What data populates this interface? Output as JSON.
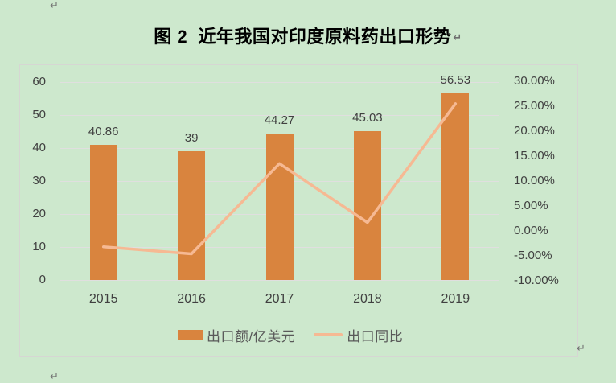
{
  "page": {
    "background": "#cde8cd",
    "paragraph_mark": "↵"
  },
  "title": {
    "text": "图 2  近年我国对印度原料药出口形势"
  },
  "chart_data": {
    "type": "bar",
    "subtype": "combo-bar-line",
    "title": "图 2  近年我国对印度原料药出口形势",
    "categories": [
      "2015",
      "2016",
      "2017",
      "2018",
      "2019"
    ],
    "series": [
      {
        "name": "出口额/亿美元",
        "kind": "bar",
        "axis": "left",
        "color": "#d9843e",
        "values": [
          40.86,
          39,
          44.27,
          45.03,
          56.53
        ],
        "data_labels": [
          "40.86",
          "39",
          "44.27",
          "45.03",
          "56.53"
        ]
      },
      {
        "name": "出口同比",
        "kind": "line",
        "axis": "right",
        "color": "#f6b993",
        "values": [
          -3.2,
          -4.6,
          13.5,
          1.7,
          25.5
        ]
      }
    ],
    "left_axis": {
      "min": 0,
      "max": 60,
      "tick_values": [
        60,
        50,
        40,
        30,
        20,
        10,
        0
      ],
      "tick_labels": [
        "60",
        "50",
        "40",
        "30",
        "20",
        "10",
        "0"
      ]
    },
    "right_axis": {
      "min": -10,
      "max": 30,
      "tick_labels": [
        "30.00%",
        "25.00%",
        "20.00%",
        "15.00%",
        "10.00%",
        "5.00%",
        "0.00%",
        "-5.00%",
        "-10.00%"
      ]
    },
    "grid": true,
    "grid_color": "#e0dfdf",
    "text_color": "#404040",
    "legend_position": "bottom"
  }
}
